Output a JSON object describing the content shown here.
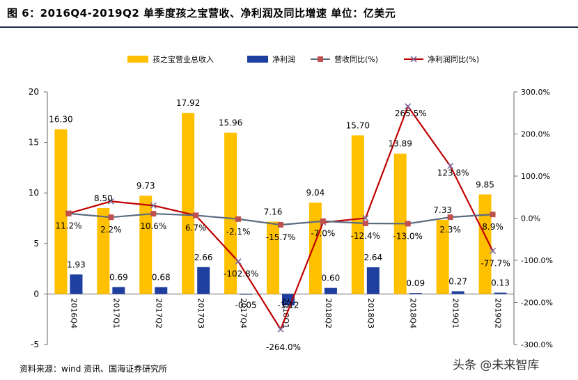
{
  "header": {
    "title": "图 6：2016Q4-2019Q2 单季度孩之宝营收、净利润及同比增速    单位：亿美元"
  },
  "footer": {
    "source": "资料来源：wind 资讯、国海证券研究所",
    "watermark": "头条 @未来智库"
  },
  "colors": {
    "revenue_bar": "#FFC000",
    "net_profit_bar": "#1F3FA0",
    "revenue_yoy_line": "#5A6B80",
    "revenue_yoy_marker": "#C0504D",
    "net_profit_yoy_line": "#C00000",
    "net_profit_yoy_marker": "#7B6C9E"
  },
  "chart_data": {
    "type": "bar",
    "categories": [
      "2016Q4",
      "2017Q1",
      "2017Q2",
      "2017Q3",
      "2017Q4",
      "2018Q1",
      "2018Q2",
      "2018Q3",
      "2018Q4",
      "2019Q1",
      "2019Q2"
    ],
    "series": [
      {
        "name": "孩之宝营业总收入",
        "type": "bar",
        "axis": "left",
        "values": [
          16.3,
          8.5,
          9.73,
          17.92,
          15.96,
          7.16,
          9.04,
          15.7,
          13.89,
          7.33,
          9.85
        ],
        "labels": [
          "16.30",
          "8.50",
          "9.73",
          "17.92",
          "15.96",
          "7.16",
          "9.04",
          "15.70",
          "13.89",
          "7.33",
          "9.85"
        ]
      },
      {
        "name": "净利润",
        "type": "bar",
        "axis": "left",
        "values": [
          1.93,
          0.69,
          0.68,
          2.66,
          -0.05,
          -1.12,
          0.6,
          2.64,
          0.09,
          0.27,
          0.13
        ],
        "labels": [
          "1.93",
          "0.69",
          "0.68",
          "2.66",
          "-0.05",
          "-1.12",
          "0.60",
          "2.64",
          "0.09",
          "0.27",
          "0.13"
        ]
      },
      {
        "name": "营收同比(%)",
        "type": "line",
        "axis": "right",
        "values": [
          11.2,
          2.2,
          10.6,
          6.7,
          -2.1,
          -15.7,
          -7.0,
          -12.4,
          -13.0,
          2.3,
          8.9
        ],
        "labels": [
          "11.2%",
          "2.2%",
          "10.6%",
          "6.7%",
          "-2.1%",
          "-15.7%",
          "-7.0%",
          "-12.4%",
          "-13.0%",
          "2.3%",
          "8.9%"
        ]
      },
      {
        "name": "净利润同比(%)",
        "type": "line",
        "axis": "right",
        "values": [
          11.2,
          40.0,
          30.0,
          6.7,
          -102.8,
          -264.0,
          -10.0,
          0.0,
          265.5,
          123.8,
          -77.7
        ],
        "labels": [
          "",
          "",
          "",
          "",
          "-102.8%",
          "-264.0%",
          "",
          "",
          "265.5%",
          "123.8%",
          "-77.7%"
        ]
      }
    ],
    "y_left": {
      "range": [
        -5,
        20
      ],
      "ticks": [
        "-5",
        "0",
        "5",
        "10",
        "15",
        "20"
      ],
      "tick_values": [
        -5,
        0,
        5,
        10,
        15,
        20
      ]
    },
    "y_right": {
      "range": [
        -300,
        300
      ],
      "ticks": [
        "-300.0%",
        "-200.0%",
        "-100.0%",
        "0.0%",
        "100.0%",
        "200.0%",
        "300.0%"
      ],
      "tick_values": [
        -300,
        -200,
        -100,
        0,
        100,
        200,
        300
      ]
    },
    "grid": false,
    "legend_position": "top"
  }
}
